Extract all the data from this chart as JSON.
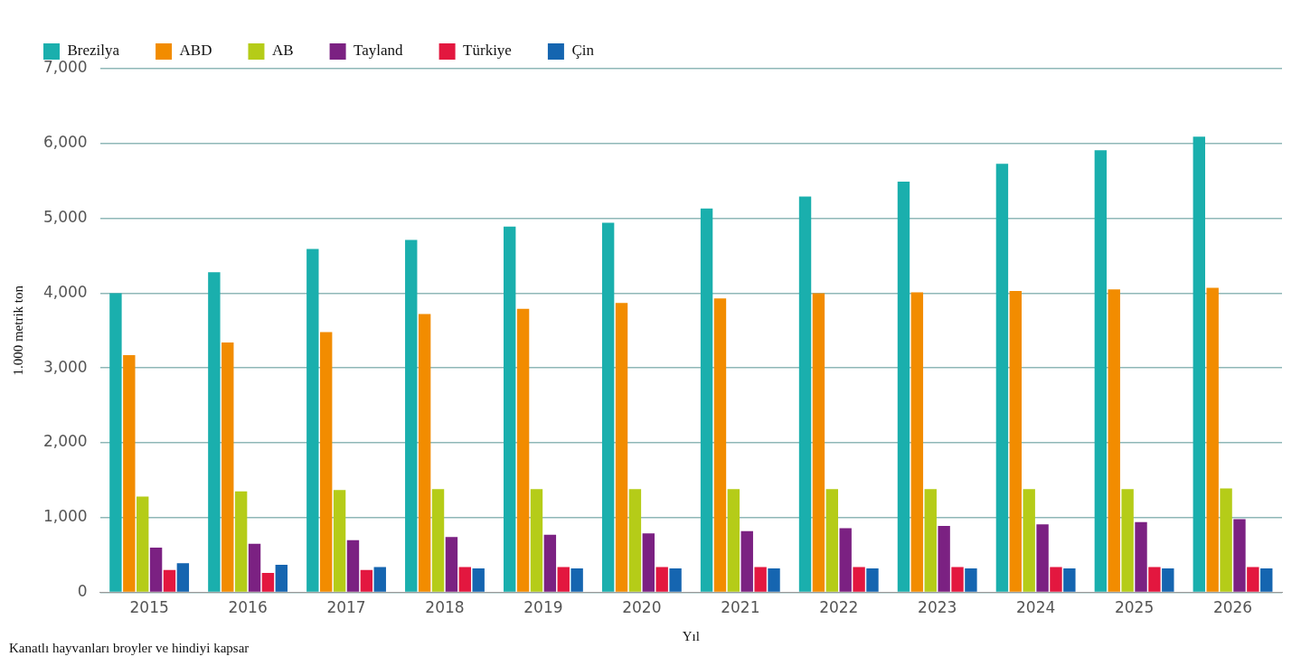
{
  "chart_data": {
    "type": "bar",
    "xlabel": "Yıl",
    "ylabel": "1.000 metrik ton",
    "annotations": [
      "Kanatlı hayvanları broyler ve hindiyi kapsar"
    ],
    "categories": [
      "2015",
      "2016",
      "2017",
      "2018",
      "2019",
      "2020",
      "2021",
      "2022",
      "2023",
      "2024",
      "2025",
      "2026"
    ],
    "series": [
      {
        "name": "Brezilya",
        "color": "#1aafad",
        "values": [
          4000,
          4280,
          4590,
          4710,
          4890,
          4940,
          5130,
          5290,
          5490,
          5730,
          5910,
          6090
        ]
      },
      {
        "name": "ABD",
        "color": "#f28c00",
        "values": [
          3170,
          3340,
          3480,
          3720,
          3790,
          3870,
          3930,
          4000,
          4010,
          4030,
          4050,
          4070
        ]
      },
      {
        "name": "AB",
        "color": "#b5cc18",
        "values": [
          1280,
          1350,
          1370,
          1380,
          1380,
          1380,
          1380,
          1380,
          1380,
          1380,
          1380,
          1390
        ]
      },
      {
        "name": "Tayland",
        "color": "#7b2182",
        "values": [
          600,
          650,
          700,
          740,
          770,
          790,
          820,
          860,
          890,
          910,
          940,
          980
        ]
      },
      {
        "name": "Türkiye",
        "color": "#e3173f",
        "values": [
          300,
          260,
          300,
          340,
          340,
          340,
          340,
          340,
          340,
          340,
          340,
          340
        ]
      },
      {
        "name": "Çin",
        "color": "#1565b0",
        "values": [
          390,
          370,
          340,
          320,
          320,
          320,
          320,
          320,
          320,
          320,
          320,
          320
        ]
      }
    ],
    "ylim": [
      0,
      7000
    ],
    "yticks": [
      0,
      {
        "value": 1000,
        "label": "1,000"
      },
      {
        "value": 2000,
        "label": "2,000"
      },
      {
        "value": 3000,
        "label": "3,000"
      },
      {
        "value": 4000,
        "label": "4,000"
      },
      {
        "value": 5000,
        "label": "5,000"
      },
      {
        "value": 6000,
        "label": "6,000"
      },
      {
        "value": 7000,
        "label": "7,000"
      }
    ],
    "grid": "y",
    "legend": "top left"
  }
}
